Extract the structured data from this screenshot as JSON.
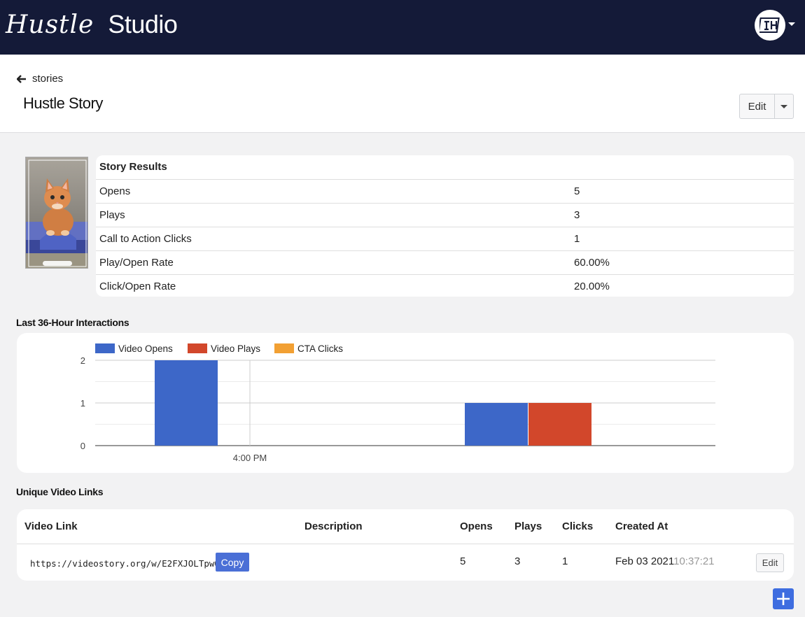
{
  "brand": {
    "script": "Hustle",
    "name": "Studio"
  },
  "user": {
    "avatar_icon": "hustle-logo-icon"
  },
  "header": {
    "back_label": "stories",
    "title": "Hustle Story",
    "edit_label": "Edit"
  },
  "story_results": {
    "heading": "Story Results",
    "rows": [
      {
        "label": "Opens",
        "value": "5"
      },
      {
        "label": "Plays",
        "value": "3"
      },
      {
        "label": "Call to Action Clicks",
        "value": "1"
      },
      {
        "label": "Play/Open Rate",
        "value": "60.00%"
      },
      {
        "label": "Click/Open Rate",
        "value": "20.00%"
      }
    ]
  },
  "interactions": {
    "title": "Last 36-Hour Interactions"
  },
  "chart_data": {
    "type": "bar",
    "title": "",
    "categories": [
      "slot-1",
      "slot-2"
    ],
    "series": [
      {
        "name": "Video Opens",
        "color": "#3d67c8",
        "values": [
          2,
          1
        ]
      },
      {
        "name": "Video Plays",
        "color": "#d2472b",
        "values": [
          0,
          1
        ]
      },
      {
        "name": "CTA Clicks",
        "color": "#f2a033",
        "values": [
          0,
          0
        ]
      }
    ],
    "yticks": [
      "0",
      "1",
      "2"
    ],
    "ylim": [
      0,
      2
    ],
    "xtick_label": "4:00 PM",
    "legend": "top-left",
    "grid": true
  },
  "links": {
    "title": "Unique Video Links",
    "columns": [
      "Video Link",
      "Description",
      "Opens",
      "Plays",
      "Clicks",
      "Created At"
    ],
    "row": {
      "url": "https://videostory.org/w/E2FXJOLTpwOh",
      "copy_label": "Copy",
      "description": "",
      "opens": "5",
      "plays": "3",
      "clicks": "1",
      "created_date": "Feb 03 2021",
      "created_time": "10:37:21",
      "edit_label": "Edit"
    }
  }
}
